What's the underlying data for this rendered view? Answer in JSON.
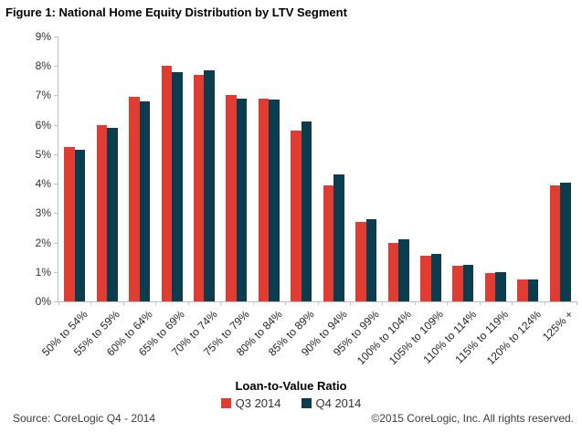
{
  "title": "Figure 1: National Home Equity Distribution by LTV Segment",
  "chart_data": {
    "type": "bar",
    "title": "Figure 1: National Home Equity Distribution by LTV Segment",
    "categories": [
      "50% to 54%",
      "55% to 59%",
      "60% to 64%",
      "65% to 69%",
      "70% to 74%",
      "75% to 79%",
      "80% to 84%",
      "85% to 89%",
      "90% to 94%",
      "95% to 99%",
      "100% to 104%",
      "105% to 109%",
      "110% to 114%",
      "115% to 119%",
      "120% to 124%",
      "125% +"
    ],
    "series": [
      {
        "name": "Q3 2014",
        "color": "#E03C31",
        "values": [
          5.25,
          6.0,
          6.95,
          8.0,
          7.7,
          7.0,
          6.9,
          5.8,
          3.95,
          2.7,
          2.0,
          1.55,
          1.2,
          0.95,
          0.75,
          3.95
        ]
      },
      {
        "name": "Q4 2014",
        "color": "#0C3D4F",
        "values": [
          5.15,
          5.9,
          6.8,
          7.8,
          7.85,
          6.9,
          6.85,
          6.1,
          4.3,
          2.8,
          2.1,
          1.6,
          1.25,
          1.0,
          0.75,
          4.05
        ]
      }
    ],
    "xlabel": "Loan-to-Value Ratio",
    "ylabel": "",
    "ylim": [
      0,
      9
    ],
    "y_ticks": [
      "0%",
      "1%",
      "2%",
      "3%",
      "4%",
      "5%",
      "6%",
      "7%",
      "8%",
      "9%"
    ],
    "grid": false,
    "legend_position": "bottom",
    "axis_color": "#bfbfbf"
  },
  "footer": {
    "source": "Source: CoreLogic Q4 - 2014",
    "copyright": "©2015 CoreLogic, Inc. All rights reserved."
  }
}
